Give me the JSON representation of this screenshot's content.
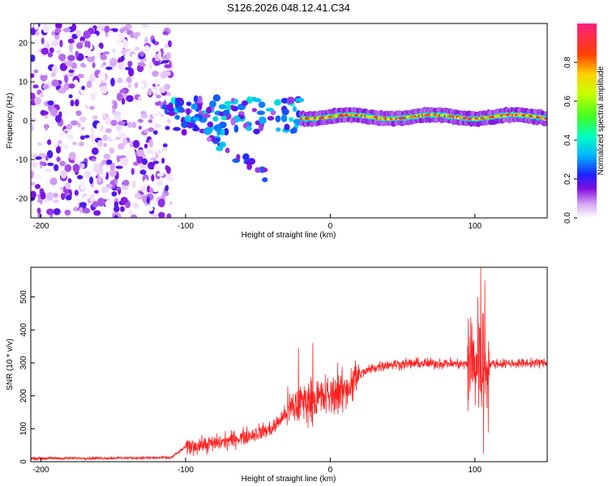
{
  "title": "S126.2026.048.12.41.C34",
  "chart_data": [
    {
      "type": "heatmap",
      "name": "spectrogram",
      "xlabel": "Height of straight line (km)",
      "ylabel": "Frequency (Hz)",
      "xlim": [
        -207,
        150
      ],
      "ylim": [
        -25,
        25
      ],
      "xticks": [
        -200,
        -100,
        0,
        100
      ],
      "yticks": [
        20,
        10,
        0,
        -10,
        -20
      ],
      "colorbar": {
        "label": "Normalized spectral amplitude",
        "range": [
          0,
          1
        ],
        "ticks": [
          0.0,
          0.2,
          0.4,
          0.6,
          0.8
        ]
      },
      "features": [
        {
          "region": "broadband noise",
          "x_range": [
            -207,
            -110
          ],
          "freq_range": [
            -25,
            25
          ],
          "amplitude": [
            0.0,
            0.2
          ]
        },
        {
          "region": "transition, descending branch",
          "x_start": -115,
          "x_end": -45,
          "freq_start": 4,
          "freq_end": -14,
          "amplitude": [
            0.1,
            0.35
          ]
        },
        {
          "region": "transition blobs near zero",
          "x_range": [
            -110,
            -20
          ],
          "freq_range": [
            -3,
            6
          ],
          "amplitude": [
            0.1,
            0.4
          ]
        },
        {
          "region": "steady line",
          "x_range": [
            -20,
            150
          ],
          "freq_approx": 1,
          "amplitude": [
            0.6,
            1.0
          ]
        }
      ]
    },
    {
      "type": "line",
      "name": "snr",
      "xlabel": "Height of straight line (km)",
      "ylabel": "SNR (10 * v/v)",
      "xlim": [
        -207,
        150
      ],
      "ylim": [
        0,
        590
      ],
      "xticks": [
        -200,
        -100,
        0,
        100
      ],
      "yticks": [
        0,
        100,
        200,
        300,
        400,
        500
      ],
      "color": "#ff2020",
      "trend": [
        {
          "x": -207,
          "y": 10
        },
        {
          "x": -110,
          "y": 12
        },
        {
          "x": -100,
          "y": 45
        },
        {
          "x": -80,
          "y": 55
        },
        {
          "x": -60,
          "y": 75
        },
        {
          "x": -40,
          "y": 100
        },
        {
          "x": -30,
          "y": 150
        },
        {
          "x": -20,
          "y": 180
        },
        {
          "x": -10,
          "y": 190
        },
        {
          "x": 0,
          "y": 200
        },
        {
          "x": 10,
          "y": 215
        },
        {
          "x": 20,
          "y": 265
        },
        {
          "x": 30,
          "y": 285
        },
        {
          "x": 40,
          "y": 295
        },
        {
          "x": 60,
          "y": 298
        },
        {
          "x": 80,
          "y": 298
        },
        {
          "x": 100,
          "y": 295
        },
        {
          "x": 120,
          "y": 298
        },
        {
          "x": 150,
          "y": 300
        }
      ],
      "spikes": [
        {
          "x": -22,
          "y": 345
        },
        {
          "x": -12,
          "y": 360
        },
        {
          "x": 5,
          "y": 300
        },
        {
          "x": 98,
          "y": 420
        },
        {
          "x": 102,
          "y": 500
        },
        {
          "x": 104,
          "y": 590
        },
        {
          "x": 107,
          "y": 550
        },
        {
          "x": 106,
          "y": 25
        }
      ]
    }
  ]
}
